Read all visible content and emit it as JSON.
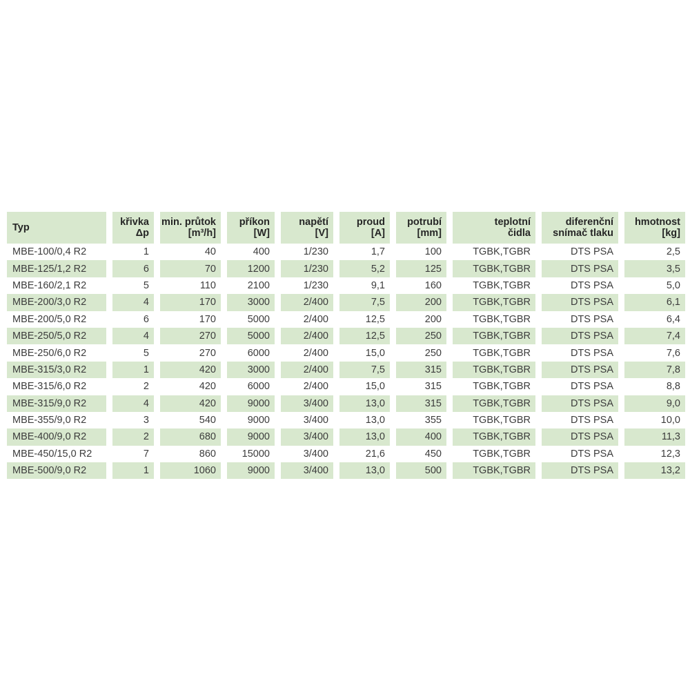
{
  "table": {
    "name": "MBE R2 duct heater specification table",
    "colors": {
      "row_green": "#d8e8ce",
      "row_white": "#ffffff",
      "header_green": "#d8e8ce",
      "text": "#3c3c3c",
      "header_text": "#262626"
    },
    "columns": [
      {
        "key": "typ",
        "lines": [
          "Typ"
        ],
        "align": "left"
      },
      {
        "key": "krivka",
        "lines": [
          "křivka",
          "Δp"
        ],
        "align": "right"
      },
      {
        "key": "min_prutok",
        "lines": [
          "min. průtok",
          "[m³/h]"
        ],
        "align": "right"
      },
      {
        "key": "prikon",
        "lines": [
          "příkon",
          "[W]"
        ],
        "align": "right"
      },
      {
        "key": "napeti",
        "lines": [
          "napětí",
          "[V]"
        ],
        "align": "right"
      },
      {
        "key": "proud",
        "lines": [
          "proud",
          "[A]"
        ],
        "align": "right"
      },
      {
        "key": "potrubi",
        "lines": [
          "potrubí",
          "[mm]"
        ],
        "align": "right"
      },
      {
        "key": "teplotni",
        "lines": [
          "teplotní",
          "čidla"
        ],
        "align": "right"
      },
      {
        "key": "diferencni",
        "lines": [
          "diferenční",
          "snímač tlaku"
        ],
        "align": "right"
      },
      {
        "key": "hmotnost",
        "lines": [
          "hmotnost",
          "[kg]"
        ],
        "align": "right"
      }
    ],
    "rows": [
      [
        "MBE-100/0,4 R2",
        "1",
        "40",
        "400",
        "1/230",
        "1,7",
        "100",
        "TGBK,TGBR",
        "DTS PSA",
        "2,5"
      ],
      [
        "MBE-125/1,2 R2",
        "6",
        "70",
        "1200",
        "1/230",
        "5,2",
        "125",
        "TGBK,TGBR",
        "DTS PSA",
        "3,5"
      ],
      [
        "MBE-160/2,1 R2",
        "5",
        "110",
        "2100",
        "1/230",
        "9,1",
        "160",
        "TGBK,TGBR",
        "DTS PSA",
        "5,0"
      ],
      [
        "MBE-200/3,0 R2",
        "4",
        "170",
        "3000",
        "2/400",
        "7,5",
        "200",
        "TGBK,TGBR",
        "DTS PSA",
        "6,1"
      ],
      [
        "MBE-200/5,0 R2",
        "6",
        "170",
        "5000",
        "2/400",
        "12,5",
        "200",
        "TGBK,TGBR",
        "DTS PSA",
        "6,4"
      ],
      [
        "MBE-250/5,0 R2",
        "4",
        "270",
        "5000",
        "2/400",
        "12,5",
        "250",
        "TGBK,TGBR",
        "DTS PSA",
        "7,4"
      ],
      [
        "MBE-250/6,0 R2",
        "5",
        "270",
        "6000",
        "2/400",
        "15,0",
        "250",
        "TGBK,TGBR",
        "DTS PSA",
        "7,6"
      ],
      [
        "MBE-315/3,0 R2",
        "1",
        "420",
        "3000",
        "2/400",
        "7,5",
        "315",
        "TGBK,TGBR",
        "DTS PSA",
        "7,8"
      ],
      [
        "MBE-315/6,0 R2",
        "2",
        "420",
        "6000",
        "2/400",
        "15,0",
        "315",
        "TGBK,TGBR",
        "DTS PSA",
        "8,8"
      ],
      [
        "MBE-315/9,0 R2",
        "4",
        "420",
        "9000",
        "3/400",
        "13,0",
        "315",
        "TGBK,TGBR",
        "DTS PSA",
        "9,0"
      ],
      [
        "MBE-355/9,0 R2",
        "3",
        "540",
        "9000",
        "3/400",
        "13,0",
        "355",
        "TGBK,TGBR",
        "DTS PSA",
        "10,0"
      ],
      [
        "MBE-400/9,0 R2",
        "2",
        "680",
        "9000",
        "3/400",
        "13,0",
        "400",
        "TGBK,TGBR",
        "DTS PSA",
        "11,3"
      ],
      [
        "MBE-450/15,0 R2",
        "7",
        "860",
        "15000",
        "3/400",
        "21,6",
        "450",
        "TGBK,TGBR",
        "DTS PSA",
        "12,3"
      ],
      [
        "MBE-500/9,0 R2",
        "1",
        "1060",
        "9000",
        "3/400",
        "13,0",
        "500",
        "TGBK,TGBR",
        "DTS PSA",
        "13,2"
      ]
    ]
  }
}
